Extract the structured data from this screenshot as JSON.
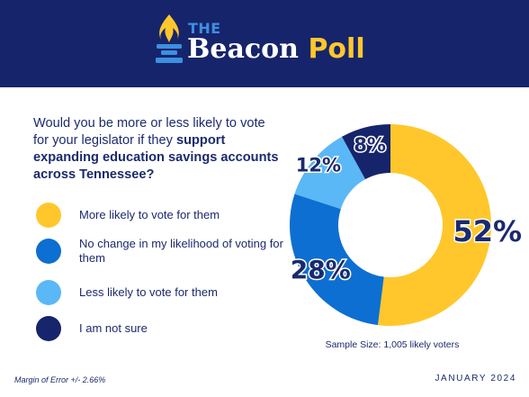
{
  "header": {
    "brand_the": "THE",
    "brand_main": "Beacon",
    "brand_poll": "Poll",
    "background": "#16246b"
  },
  "question": {
    "prefix": "Would you be more or less likely to vote for your legislator if they ",
    "bold": "support expanding education savings accounts across Tennessee?"
  },
  "chart_data": {
    "type": "pie",
    "style": "donut",
    "categories": [
      "More likely to vote for them",
      "No change in my likelihood of voting for them",
      "Less likely to vote for them",
      "I am not sure"
    ],
    "values": [
      52,
      28,
      12,
      8
    ],
    "data_labels": [
      "52%",
      "28%",
      "12%",
      "8%"
    ],
    "colors": [
      "#ffc72c",
      "#0c6fd1",
      "#5ab8f7",
      "#16246b"
    ],
    "legend_position": "left"
  },
  "legend": [
    {
      "label": "More likely to vote for them",
      "color": "#ffc72c"
    },
    {
      "label": "No change in my likelihood of voting for them",
      "color": "#0c6fd1"
    },
    {
      "label": "Less likely to vote for them",
      "color": "#5ab8f7"
    },
    {
      "label": "I am not sure",
      "color": "#16246b"
    }
  ],
  "footer": {
    "sample_size": "Sample Size: 1,005 likely voters",
    "margin_of_error": "Margin of Error +/- 2.66%",
    "date": "JANUARY 2024"
  }
}
